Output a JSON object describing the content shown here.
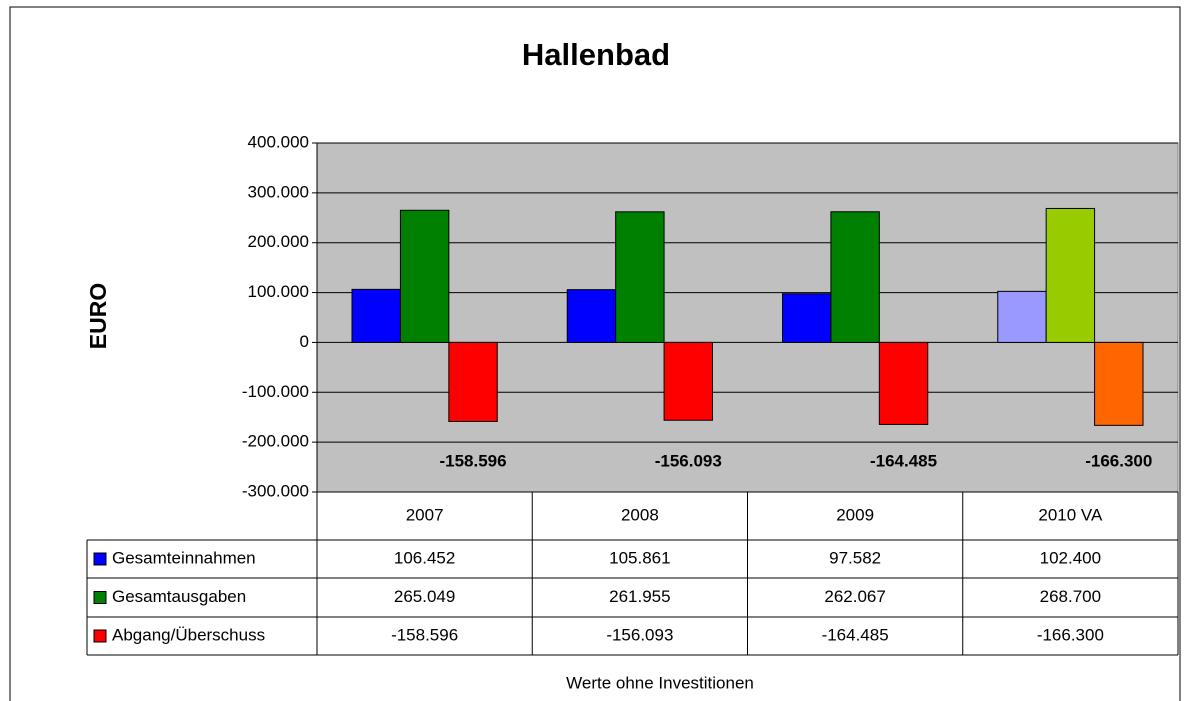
{
  "chart_data": {
    "type": "bar",
    "title": "Hallenbad",
    "y_label": "EURO",
    "x_label": "Werte ohne Investitionen",
    "categories": [
      "2007",
      "2008",
      "2009",
      "2010 VA"
    ],
    "series": [
      {
        "name": "Gesamteinnahmen",
        "color": "#0000ff",
        "colors": [
          "#0000ff",
          "#0000ff",
          "#0000ff",
          "#9999ff"
        ],
        "values": [
          106452,
          105861,
          97582,
          102400
        ],
        "value_labels": [
          "106.452",
          "105.861",
          "97.582",
          "102.400"
        ]
      },
      {
        "name": "Gesamtausgaben",
        "color": "#008000",
        "colors": [
          "#008000",
          "#008000",
          "#008000",
          "#99cc00"
        ],
        "values": [
          265049,
          261955,
          262067,
          268700
        ],
        "value_labels": [
          "265.049",
          "261.955",
          "262.067",
          "268.700"
        ]
      },
      {
        "name": "Abgang/Überschuss",
        "color": "#ff0000",
        "colors": [
          "#ff0000",
          "#ff0000",
          "#ff0000",
          "#ff6600"
        ],
        "values": [
          -158596,
          -156093,
          -164485,
          -166300
        ],
        "value_labels": [
          "-158.596",
          "-156.093",
          "-164.485",
          "-166.300"
        ]
      }
    ],
    "ylim": [
      -300000,
      400000
    ],
    "yticks": [
      {
        "value": -300000,
        "label": "-300.000"
      },
      {
        "value": -200000,
        "label": "-200.000"
      },
      {
        "value": -100000,
        "label": "-100.000"
      },
      0,
      {
        "value": 100000,
        "label": "100.000"
      },
      {
        "value": 200000,
        "label": "200.000"
      },
      {
        "value": 300000,
        "label": "300.000"
      },
      {
        "value": 400000,
        "label": "400.000"
      }
    ],
    "grid": true,
    "plot_background": "#c0c0c0"
  }
}
